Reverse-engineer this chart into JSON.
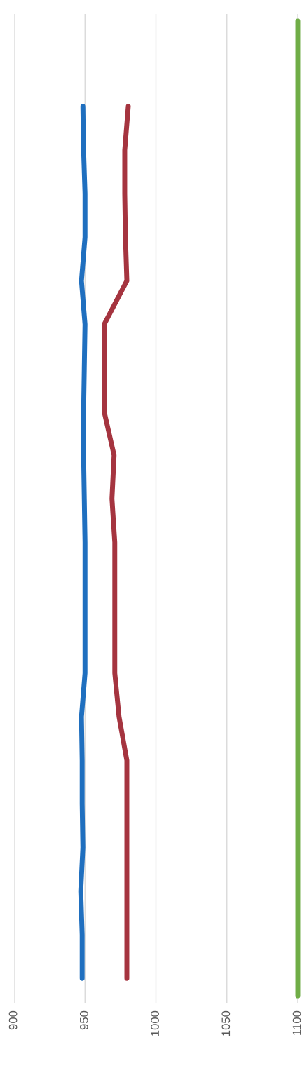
{
  "chart_data": {
    "type": "line",
    "orientation": "horizontal",
    "categories": [
      null,
      null,
      null,
      null,
      null,
      null,
      null,
      null,
      null,
      null,
      null,
      null,
      null,
      null,
      null,
      null,
      null,
      null,
      null,
      null,
      null
    ],
    "series": [
      {
        "color": "#1f6fbf",
        "values": [
          948.5,
          949,
          950,
          950,
          947.5,
          950,
          949.5,
          949,
          949,
          949.5,
          950,
          950,
          950,
          950,
          947.5,
          948,
          948,
          948.5,
          947,
          948,
          948
        ]
      },
      {
        "color": "#a5343f",
        "values": [
          980.5,
          978,
          978,
          978.5,
          979.5,
          963.5,
          963.5,
          963.5,
          970.5,
          969,
          971,
          971,
          971,
          971,
          974,
          979.5,
          979.5,
          979.5,
          979.5,
          979.5,
          979.5
        ]
      }
    ],
    "ref_lines": [
      {
        "axis": "x",
        "value": 1100,
        "color": "#70ad47"
      }
    ],
    "xlim": [
      900,
      1100
    ],
    "xticks": [
      900,
      950,
      1000,
      1050,
      1100
    ],
    "grid": "x",
    "legend": false,
    "marker": "none",
    "line_style": "solid"
  }
}
